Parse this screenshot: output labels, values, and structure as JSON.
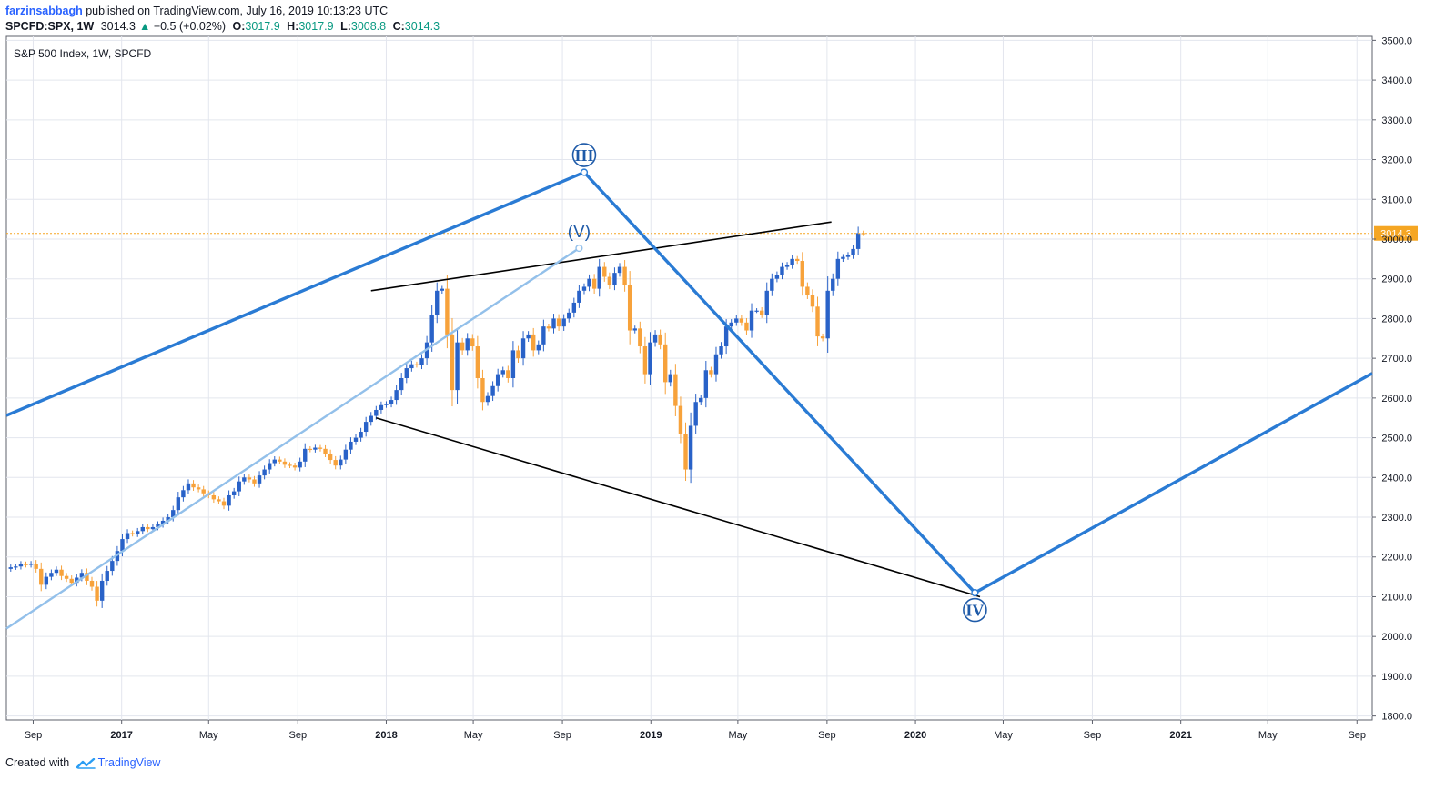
{
  "header": {
    "author": "farzinsabbagh",
    "published_text": "published on TradingView.com, July 16, 2019 10:13:23 UTC",
    "symbol": "SPCFD:SPX, 1W",
    "last": "3014.3",
    "up_arrow": "▲",
    "change": "+0.5 (+0.02%)",
    "o_label": "O:",
    "o_value": "3017.9",
    "h_label": "H:",
    "h_value": "3017.9",
    "l_label": "L:",
    "l_value": "3008.8",
    "c_label": "C:",
    "c_value": "3014.3"
  },
  "footer": {
    "created_with": "Created with",
    "brand": "TradingView"
  },
  "colors": {
    "up": "#2962c8",
    "down": "#f7a23b",
    "wave": "#2a7bd4",
    "wave_light": "#93c0ea",
    "trend": "#000000",
    "price_line": "#f5a623"
  },
  "chart_data": {
    "type": "candlestick",
    "title": "S&P 500 Index, 1W, SPCFD",
    "y_ticks": [
      1800,
      1900,
      2000,
      2100,
      2200,
      2300,
      2400,
      2500,
      2600,
      2700,
      2800,
      2900,
      3000,
      3100,
      3200,
      3300,
      3400,
      3500
    ],
    "y_tick_labels": [
      "1800.0",
      "1900.0",
      "2000.0",
      "2100.0",
      "2200.0",
      "2300.0",
      "2400.0",
      "2500.0",
      "2600.0",
      "2700.0",
      "2800.0",
      "2900.0",
      "3000.0",
      "3100.0",
      "3200.0",
      "3300.0",
      "3400.0",
      "3500.0"
    ],
    "ylim": [
      1790,
      3510
    ],
    "x_ticks": [
      {
        "label": "Sep",
        "date": "2016-09-01",
        "bold": false
      },
      {
        "label": "2017",
        "date": "2017-01-01",
        "bold": true
      },
      {
        "label": "May",
        "date": "2017-05-01",
        "bold": false
      },
      {
        "label": "Sep",
        "date": "2017-09-01",
        "bold": false
      },
      {
        "label": "2018",
        "date": "2018-01-01",
        "bold": true
      },
      {
        "label": "May",
        "date": "2018-05-01",
        "bold": false
      },
      {
        "label": "Sep",
        "date": "2018-09-01",
        "bold": false
      },
      {
        "label": "2019",
        "date": "2019-01-01",
        "bold": true
      },
      {
        "label": "May",
        "date": "2019-05-01",
        "bold": false
      },
      {
        "label": "Sep",
        "date": "2019-09-01",
        "bold": false
      },
      {
        "label": "2020",
        "date": "2020-01-01",
        "bold": true
      },
      {
        "label": "May",
        "date": "2020-05-01",
        "bold": false
      },
      {
        "label": "Sep",
        "date": "2020-09-01",
        "bold": false
      },
      {
        "label": "2021",
        "date": "2021-01-01",
        "bold": true
      },
      {
        "label": "May",
        "date": "2021-05-01",
        "bold": false
      },
      {
        "label": "Sep",
        "date": "2021-09-01",
        "bold": false
      }
    ],
    "x_range": [
      "2016-07-26",
      "2021-09-22"
    ],
    "last_price": 3014.3,
    "last_price_label": "3014.3",
    "candle_weeks": {
      "first": "2016-08-01",
      "last": "2019-07-15"
    },
    "closes": [
      2174,
      2176,
      2182,
      2180,
      2183,
      2170,
      2130,
      2150,
      2160,
      2168,
      2152,
      2145,
      2135,
      2148,
      2160,
      2140,
      2125,
      2090,
      2140,
      2165,
      2190,
      2215,
      2245,
      2260,
      2258,
      2265,
      2275,
      2270,
      2275,
      2282,
      2291,
      2300,
      2318,
      2350,
      2368,
      2385,
      2375,
      2370,
      2360,
      2355,
      2345,
      2340,
      2329,
      2355,
      2365,
      2390,
      2400,
      2395,
      2385,
      2405,
      2420,
      2436,
      2445,
      2440,
      2432,
      2430,
      2425,
      2440,
      2472,
      2470,
      2475,
      2472,
      2460,
      2444,
      2430,
      2445,
      2470,
      2490,
      2500,
      2515,
      2540,
      2555,
      2570,
      2582,
      2585,
      2595,
      2620,
      2650,
      2675,
      2685,
      2683,
      2700,
      2740,
      2810,
      2870,
      2875,
      2760,
      2620,
      2740,
      2720,
      2750,
      2730,
      2650,
      2590,
      2605,
      2630,
      2660,
      2670,
      2650,
      2720,
      2700,
      2750,
      2760,
      2720,
      2735,
      2780,
      2775,
      2800,
      2780,
      2800,
      2815,
      2840,
      2870,
      2880,
      2900,
      2875,
      2930,
      2905,
      2885,
      2915,
      2930,
      2885,
      2770,
      2775,
      2730,
      2660,
      2740,
      2760,
      2735,
      2640,
      2660,
      2580,
      2510,
      2420,
      2530,
      2590,
      2600,
      2670,
      2660,
      2710,
      2730,
      2780,
      2790,
      2800,
      2790,
      2770,
      2820,
      2820,
      2810,
      2870,
      2900,
      2910,
      2930,
      2935,
      2950,
      2945,
      2880,
      2860,
      2830,
      2755,
      2750,
      2870,
      2900,
      2950,
      2955,
      2960,
      2975,
      3015,
      3014
    ],
    "wave_lines": [
      {
        "points": [
          [
            "2016-07-26",
            2556
          ],
          [
            "2018-10-01",
            3168
          ],
          [
            "2020-03-23",
            2110
          ],
          [
            "2021-09-22",
            2662
          ]
        ],
        "color": "#2a7bd4"
      },
      {
        "points": [
          [
            "2016-07-26",
            2020
          ],
          [
            "2018-09-24",
            2977
          ]
        ],
        "color": "#93c0ea"
      }
    ],
    "trend_lines": [
      {
        "points": [
          [
            "2017-12-11",
            2870
          ],
          [
            "2019-09-07",
            3043
          ]
        ]
      },
      {
        "points": [
          [
            "2017-12-18",
            2550
          ],
          [
            "2020-03-30",
            2100
          ]
        ]
      }
    ],
    "wave_labels": [
      {
        "text": "III",
        "date": "2018-10-01",
        "price": 3168,
        "style": "circle",
        "placement": "above"
      },
      {
        "text": "(V)",
        "date": "2018-09-24",
        "price": 2977,
        "style": "paren",
        "placement": "above"
      },
      {
        "text": "IV",
        "date": "2020-03-23",
        "price": 2110,
        "style": "circle",
        "placement": "below"
      }
    ]
  }
}
